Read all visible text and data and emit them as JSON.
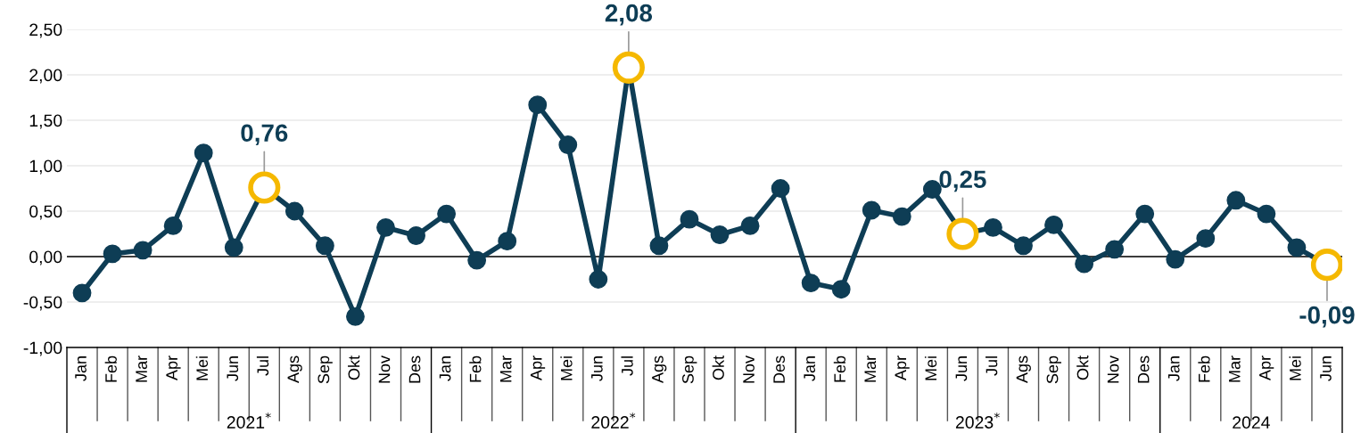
{
  "chart_data": {
    "type": "line",
    "categories": [
      "Jan",
      "Feb",
      "Mar",
      "Apr",
      "Mei",
      "Jun",
      "Jul",
      "Ags",
      "Sep",
      "Okt",
      "Nov",
      "Des",
      "Jan",
      "Feb",
      "Mar",
      "Apr",
      "Mei",
      "Jun",
      "Jul",
      "Ags",
      "Sep",
      "Okt",
      "Nov",
      "Des",
      "Jan",
      "Feb",
      "Mar",
      "Apr",
      "Mei",
      "Jun",
      "Jul",
      "Ags",
      "Sep",
      "Okt",
      "Nov",
      "Des",
      "Jan",
      "Feb",
      "Mar",
      "Apr",
      "Mei",
      "Jun"
    ],
    "series": [
      {
        "color": "#0e3d55",
        "values": [
          -0.4,
          0.03,
          0.07,
          0.34,
          1.14,
          0.1,
          0.76,
          0.5,
          0.12,
          -0.66,
          0.32,
          0.23,
          0.47,
          -0.04,
          0.17,
          1.67,
          1.23,
          -0.25,
          2.08,
          0.12,
          0.41,
          0.24,
          0.34,
          0.75,
          -0.29,
          -0.36,
          0.51,
          0.44,
          0.74,
          0.25,
          0.32,
          0.12,
          0.35,
          -0.08,
          0.08,
          0.47,
          -0.03,
          0.2,
          0.62,
          0.47,
          0.1,
          -0.09
        ],
        "colors": [
          "#0e3d55",
          "#0e3d55",
          "#0e3d55",
          "#0e3d55",
          "#0e3d55",
          "#0e3d55",
          "#f5b800",
          "#0e3d55",
          "#0e3d55",
          "#0e3d55",
          "#0e3d55",
          "#0e3d55",
          "#0e3d55",
          "#0e3d55",
          "#0e3d55",
          "#0e3d55",
          "#0e3d55",
          "#0e3d55",
          "#f5b800",
          "#0e3d55",
          "#0e3d55",
          "#0e3d55",
          "#0e3d55",
          "#0e3d55",
          "#0e3d55",
          "#0e3d55",
          "#0e3d55",
          "#0e3d55",
          "#0e3d55",
          "#f5b800",
          "#0e3d55",
          "#0e3d55",
          "#0e3d55",
          "#0e3d55",
          "#0e3d55",
          "#0e3d55",
          "#0e3d55",
          "#0e3d55",
          "#0e3d55",
          "#0e3d55",
          "#0e3d55",
          "#f5b800"
        ],
        "value_labels": [
          null,
          null,
          null,
          null,
          null,
          null,
          "0,76",
          null,
          null,
          null,
          null,
          null,
          null,
          null,
          null,
          null,
          null,
          null,
          "2,08",
          null,
          null,
          null,
          null,
          null,
          null,
          null,
          null,
          null,
          null,
          "0,25",
          null,
          null,
          null,
          null,
          null,
          null,
          null,
          null,
          null,
          null,
          null,
          "-0,09"
        ]
      }
    ],
    "ylim": [
      -1.0,
      2.5
    ],
    "yticks": [
      {
        "value": -1.0,
        "label": "-1,00"
      },
      {
        "value": -0.5,
        "label": "-0,50"
      },
      {
        "value": 0.0,
        "label": "0,00"
      },
      {
        "value": 0.5,
        "label": "0,50"
      },
      {
        "value": 1.0,
        "label": "1,00"
      },
      {
        "value": 1.5,
        "label": "1,50"
      },
      {
        "value": 2.0,
        "label": "2,00"
      },
      {
        "value": 2.5,
        "label": "2,50"
      }
    ],
    "grid": "y",
    "marker": "circle",
    "line_style": "solid",
    "legend": false,
    "ref_lines": [
      {
        "axis": "y",
        "value": 0.0,
        "color": "#000000"
      }
    ],
    "annotations": [
      "2021$^{*}$",
      "2022$^{*}$",
      "2023$^{*}$",
      "2024"
    ]
  }
}
